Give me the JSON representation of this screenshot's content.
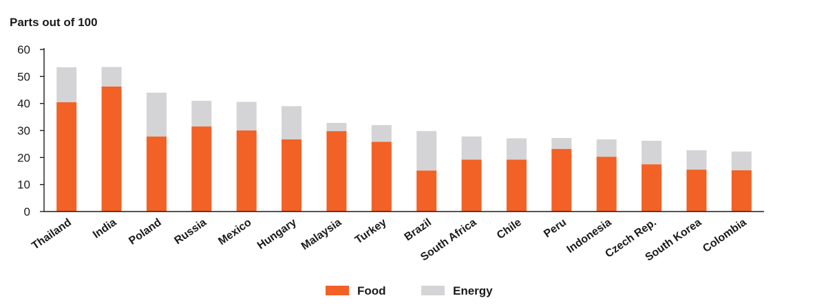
{
  "chart_data": {
    "type": "bar",
    "stacked": true,
    "ylabel": "Parts out of 100",
    "ylim": [
      0,
      60
    ],
    "yticks": [
      0,
      10,
      20,
      30,
      40,
      50,
      60
    ],
    "grid": false,
    "legend_position": "bottom-center",
    "categories": [
      "Thailand",
      "India",
      "Poland",
      "Russia",
      "Mexico",
      "Hungary",
      "Malaysia",
      "Turkey",
      "Brazil",
      "South Africa",
      "Chile",
      "Peru",
      "Indonesia",
      "Czech Rep.",
      "South Korea",
      "Colombia"
    ],
    "series": [
      {
        "name": "Food",
        "color": "#f26125",
        "values": [
          40.5,
          46.3,
          27.8,
          31.5,
          30.0,
          26.7,
          29.8,
          25.8,
          15.2,
          19.2,
          19.2,
          23.2,
          20.3,
          17.5,
          15.5,
          15.3
        ]
      },
      {
        "name": "Energy",
        "color": "#d4d4d6",
        "values": [
          12.9,
          7.2,
          16.2,
          9.5,
          10.6,
          12.3,
          3.0,
          6.2,
          14.6,
          8.6,
          7.9,
          4.0,
          6.4,
          8.7,
          7.2,
          6.9
        ]
      }
    ]
  }
}
